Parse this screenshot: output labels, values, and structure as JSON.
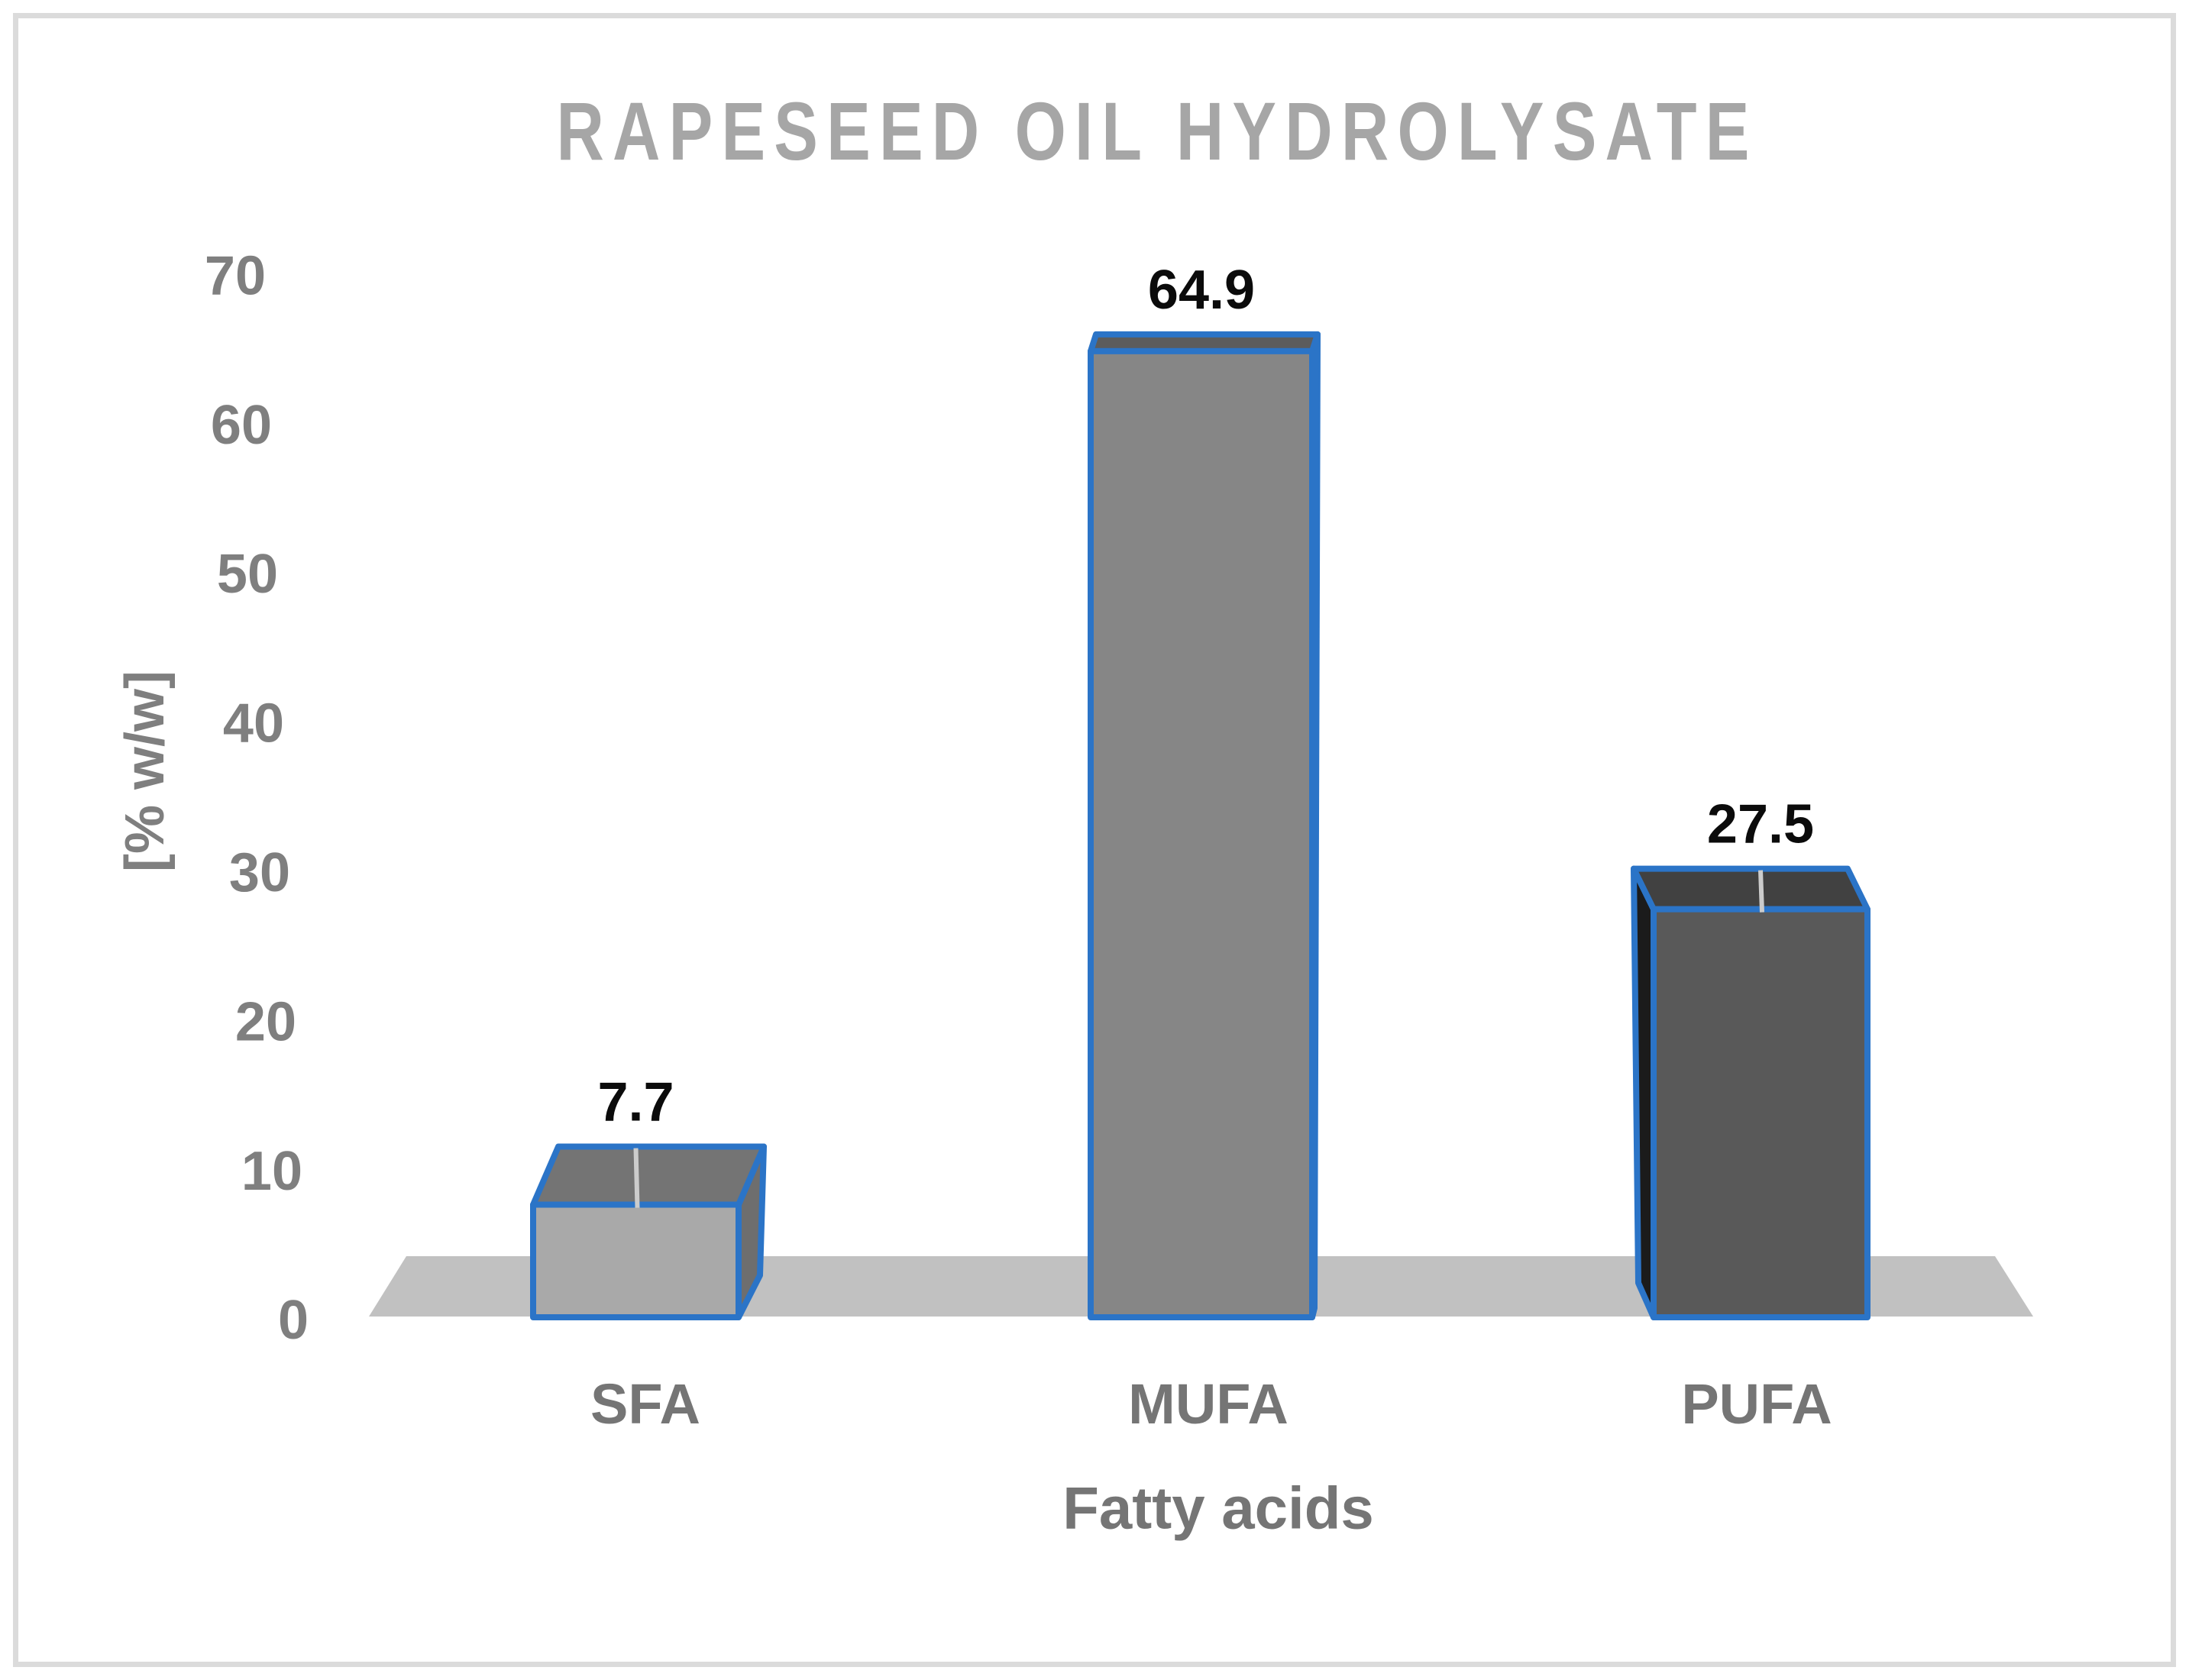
{
  "figure": {
    "border_color": "#dbdbdb",
    "background_color": "#ffffff"
  },
  "chart_data": {
    "type": "bar",
    "projection": "3d-perspective-column",
    "title": "RAPESEED OIL  HYDROLYSATE",
    "xlabel": "Fatty acids",
    "ylabel": "[% w/w]",
    "categories": [
      "SFA",
      "MUFA",
      "PUFA"
    ],
    "values": [
      7.7,
      64.9,
      27.5
    ],
    "data_labels": [
      "7.7",
      "64.9",
      "27.5"
    ],
    "ylim": [
      0,
      70
    ],
    "yticks": [
      0,
      10,
      20,
      30,
      40,
      50,
      60,
      70
    ],
    "grid": false,
    "legend": false,
    "has_leader_line": [
      true,
      false,
      true
    ],
    "bar_colors": [
      {
        "front": "#a9a9a9",
        "top": "#747474",
        "side": "#6e6e6e"
      },
      {
        "front": "#868686",
        "top": "#5c5c5c",
        "side": "#606060"
      },
      {
        "front": "#595959",
        "top": "#414141",
        "side": "#1b1b1b"
      }
    ]
  },
  "style": {
    "title_color": "#a6a6a6",
    "tick_label_color": "#7f7f7f",
    "category_label_color": "#757575",
    "xlabel_color": "#757575",
    "ylabel_color": "#7f7f7f",
    "data_label_color": "#0b0b0b",
    "bar_outline_color": "#2b74c7",
    "floor_color": "#c1c1c1",
    "leader_line_color": "#cccccc"
  }
}
